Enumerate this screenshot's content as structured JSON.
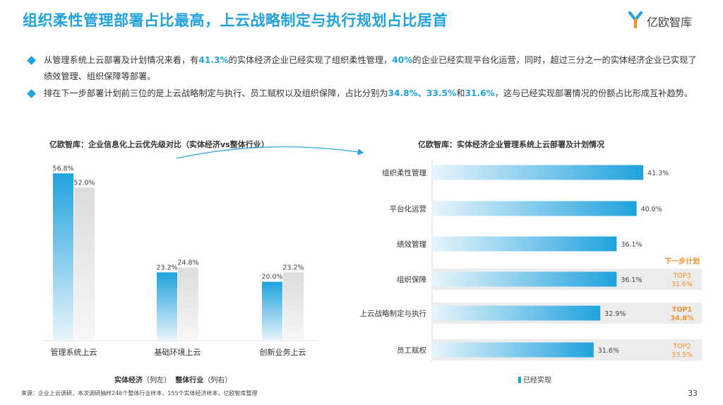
{
  "title": "组织柔性管理部署占比最高，上云战略制定与执行规划占比居首",
  "logo": {
    "text": "亿欧智库",
    "icon": "yiou-logo-icon"
  },
  "bullets": [
    [
      {
        "t": "从管理系统上云部署及计划情况来看，有"
      },
      {
        "t": "41.3%",
        "hl": true
      },
      {
        "t": "的实体经济企业已经实现了组织柔性管理，"
      },
      {
        "t": "40%",
        "hl": true
      },
      {
        "t": "的企业已经实现平台化运营，同时，超过三分之一的实体经济企业已实现了绩效管理、组织保障等部署。"
      }
    ],
    [
      {
        "t": "排在下一步部署计划前三位的是上云战略制定与执行、员工赋权以及组织保障，占比分别为"
      },
      {
        "t": "34.8%、33.5%",
        "hl": true
      },
      {
        "t": "和"
      },
      {
        "t": "31.6%",
        "hl": true
      },
      {
        "t": "，这与已经实现部署情况的份额占比形成互补趋势。"
      }
    ]
  ],
  "left_chart_title": "亿欧智库：企业信息化上云优先级对比（实体经济vs整体行业）",
  "right_chart_title": "亿欧智库：实体经济企业管理系统上云部署及计划情况",
  "legend_left": {
    "s1_bold": "实体经济",
    "s1_note": "（列左）",
    "s2_bold": "整体行业",
    "s2_note": "（列右）"
  },
  "legend_right": "已经实现",
  "next_plan_label": "下一步计划",
  "source": "来源：企业上云调研，本次调研抽样246个整体行业样本，155个实体经济样本，亿欧智库整理",
  "page_number": "33",
  "colors": {
    "accent": "#1fa2dd",
    "orange": "#f0932b",
    "gray": "#e6e6e6"
  },
  "chart_data": [
    {
      "type": "bar",
      "categories": [
        "管理系统上云",
        "基础环境上云",
        "创新业务上云"
      ],
      "series": [
        {
          "name": "实体经济",
          "values": [
            56.8,
            23.2,
            20.0
          ]
        },
        {
          "name": "整体行业",
          "values": [
            52.0,
            24.8,
            23.2
          ]
        }
      ],
      "data_labels": [
        [
          "56.8%",
          "23.2%",
          "20.0%"
        ],
        [
          "52.0%",
          "24.8%",
          "23.2%"
        ]
      ],
      "title": "亿欧智库：企业信息化上云优先级对比（实体经济vs整体行业）",
      "ylim": [
        0,
        60
      ]
    },
    {
      "type": "bar",
      "orientation": "horizontal",
      "categories": [
        "组织柔性管理",
        "平台化运营",
        "绩效管理",
        "组织保障",
        "上云战略制定与执行",
        "员工赋权"
      ],
      "series": [
        {
          "name": "已经实现",
          "values": [
            41.3,
            40.0,
            36.1,
            36.1,
            32.9,
            31.6
          ]
        }
      ],
      "data_labels": [
        "41.3%",
        "40.0%",
        "36.1%",
        "36.1%",
        "32.9%",
        "31.6%"
      ],
      "next_plan": [
        {
          "category": "组织保障",
          "rank": "TOP3",
          "value": "31.6%"
        },
        {
          "category": "上云战略制定与执行",
          "rank": "TOP1",
          "value": "34.8%"
        },
        {
          "category": "员工赋权",
          "rank": "TOP2",
          "value": "33.5%"
        }
      ],
      "title": "亿欧智库：实体经济企业管理系统上云部署及计划情况",
      "xlim": [
        0,
        45
      ]
    }
  ]
}
